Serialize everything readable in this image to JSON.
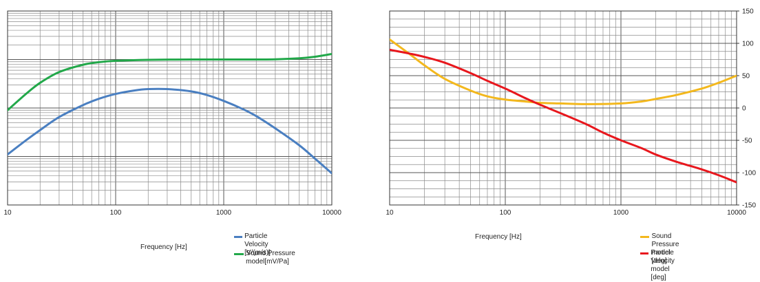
{
  "chart_data": [
    {
      "type": "line",
      "xscale": "log",
      "xlim": [
        10,
        10000
      ],
      "xticks": [
        10,
        100,
        1000,
        10000
      ],
      "xlabel": "Frequency [Hz]",
      "ylabel": "",
      "yscale": "log",
      "yaxis_tick_labels": "none",
      "grid": true,
      "legend_position": "bottom-right",
      "series": [
        {
          "name": "Particle Velocity  [V/(m/s)]",
          "color": "#4a7fc1",
          "points": [
            [
              10,
              0.11
            ],
            [
              15,
              0.22
            ],
            [
              20,
              0.35
            ],
            [
              30,
              0.65
            ],
            [
              50,
              1.15
            ],
            [
              70,
              1.55
            ],
            [
              100,
              1.95
            ],
            [
              150,
              2.3
            ],
            [
              200,
              2.45
            ],
            [
              300,
              2.45
            ],
            [
              500,
              2.2
            ],
            [
              700,
              1.85
            ],
            [
              1000,
              1.4
            ],
            [
              1500,
              0.95
            ],
            [
              2000,
              0.68
            ],
            [
              3000,
              0.38
            ],
            [
              5000,
              0.17
            ],
            [
              7000,
              0.09
            ],
            [
              10000,
              0.045
            ]
          ]
        },
        {
          "name": "Sound Pressure model[mV/Pa]",
          "color": "#22a84a",
          "points": [
            [
              10,
              0.9
            ],
            [
              15,
              2.0
            ],
            [
              20,
              3.3
            ],
            [
              30,
              5.5
            ],
            [
              50,
              7.8
            ],
            [
              70,
              8.8
            ],
            [
              100,
              9.4
            ],
            [
              200,
              9.85
            ],
            [
              500,
              10.0
            ],
            [
              1000,
              10.0
            ],
            [
              2000,
              10.0
            ],
            [
              3000,
              10.1
            ],
            [
              5000,
              10.6
            ],
            [
              7000,
              11.4
            ],
            [
              10000,
              13.0
            ]
          ]
        }
      ]
    },
    {
      "type": "line",
      "xscale": "log",
      "xlim": [
        10,
        10000
      ],
      "xticks": [
        10,
        100,
        1000,
        10000
      ],
      "ylim": [
        -150,
        150
      ],
      "yticks": [
        -150,
        -100,
        -50,
        0,
        50,
        100,
        150
      ],
      "xlabel": "Frequency [Hz]",
      "ylabel": "",
      "grid": true,
      "legend_position": "bottom-right",
      "series": [
        {
          "name": "Sound Pressure model\n[deg]",
          "color": "#f3b81d",
          "points": [
            [
              10,
              106
            ],
            [
              15,
              83
            ],
            [
              20,
              66
            ],
            [
              30,
              45
            ],
            [
              50,
              27
            ],
            [
              70,
              18
            ],
            [
              100,
              13
            ],
            [
              150,
              10
            ],
            [
              200,
              8
            ],
            [
              300,
              7
            ],
            [
              500,
              6
            ],
            [
              1000,
              7
            ],
            [
              1500,
              10
            ],
            [
              2000,
              14
            ],
            [
              3000,
              20
            ],
            [
              5000,
              30
            ],
            [
              7000,
              39
            ],
            [
              10000,
              50
            ]
          ]
        },
        {
          "name": "Particle Velocity model\n[deg]",
          "color": "#e8171d",
          "points": [
            [
              10,
              90
            ],
            [
              15,
              84
            ],
            [
              20,
              79
            ],
            [
              30,
              70
            ],
            [
              50,
              54
            ],
            [
              70,
              42
            ],
            [
              100,
              30
            ],
            [
              150,
              15
            ],
            [
              200,
              5
            ],
            [
              300,
              -8
            ],
            [
              500,
              -25
            ],
            [
              700,
              -38
            ],
            [
              1000,
              -50
            ],
            [
              1500,
              -62
            ],
            [
              2000,
              -72
            ],
            [
              3000,
              -83
            ],
            [
              5000,
              -95
            ],
            [
              7000,
              -104
            ],
            [
              10000,
              -115
            ]
          ]
        }
      ]
    }
  ]
}
